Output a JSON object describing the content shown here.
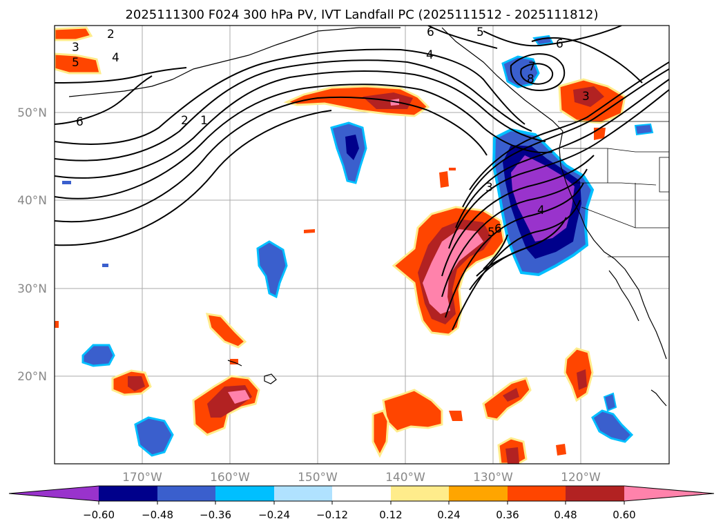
{
  "title": "2025111300 F024 300 hPa PV, IVT Landfall PC (2025111512 - 2025111812)",
  "lat_ticks": [
    "50°N",
    "40°N",
    "30°N",
    "20°N"
  ],
  "lon_ticks": [
    "170°W",
    "160°W",
    "150°W",
    "140°W",
    "130°W",
    "120°W"
  ],
  "colorbar": {
    "ticks": [
      "−0.60",
      "−0.48",
      "−0.36",
      "−0.24",
      "−0.12",
      "0.12",
      "0.24",
      "0.36",
      "0.48",
      "0.60"
    ],
    "colors": [
      "#9933cc",
      "#00008b",
      "#3a5fcd",
      "#00bfff",
      "#b0e2ff",
      "#ffffff",
      "#ffec8b",
      "#ffa500",
      "#ff4500",
      "#b22222",
      "#ff82ab"
    ]
  },
  "contour_labels": [
    "2",
    "3",
    "5",
    "4",
    "6",
    "2",
    "1",
    "6",
    "5",
    "4",
    "7",
    "8",
    "6",
    "3",
    "3",
    "5",
    "4",
    "6"
  ]
}
